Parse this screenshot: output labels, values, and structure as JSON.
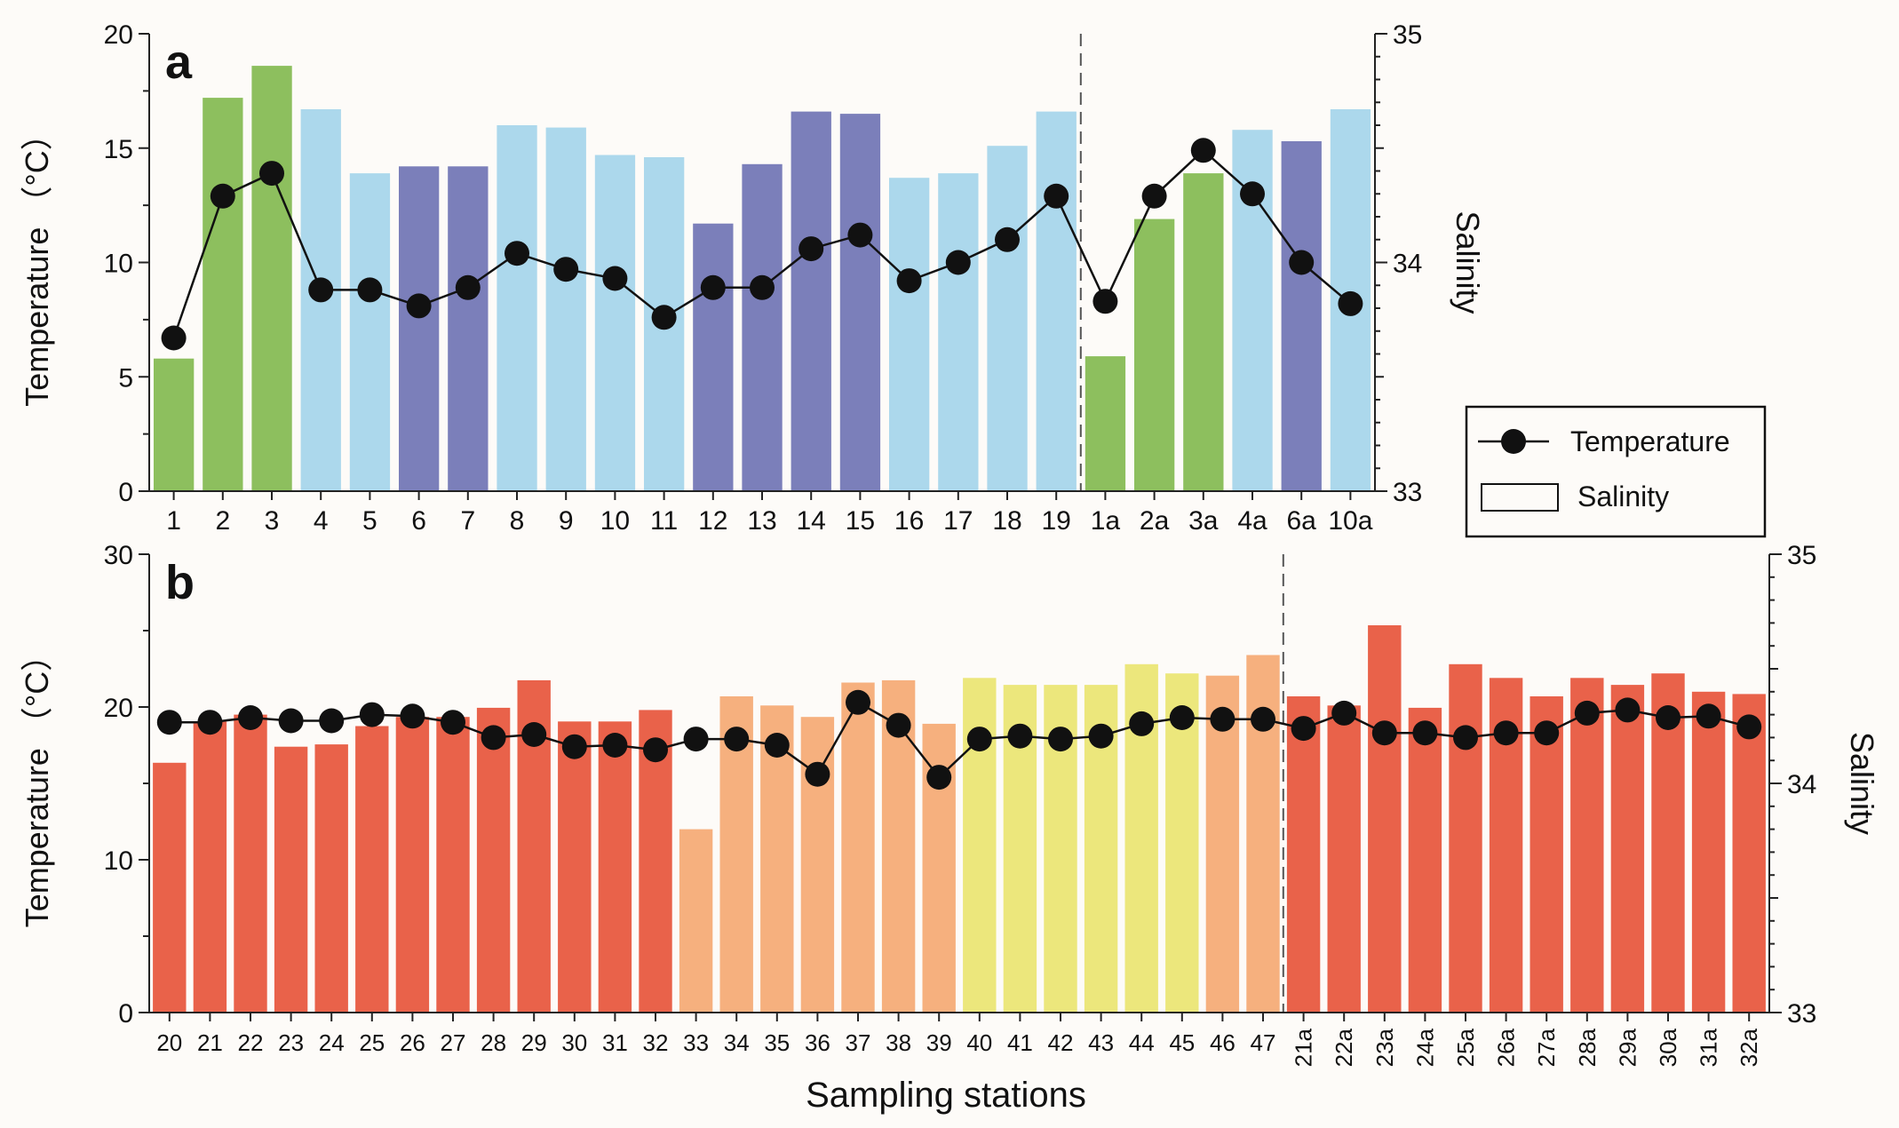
{
  "figure": {
    "xlabel": "Sampling stations",
    "legend": {
      "temperature": "Temperature",
      "salinity": "Salinity"
    }
  },
  "chart_data": [
    {
      "type": "bar",
      "panel_label": "a",
      "ylabel": "Temperature （°C）",
      "y2label": "Salinity",
      "ylim": [
        0,
        20
      ],
      "y2lim": [
        33,
        35
      ],
      "yticks": [
        0,
        5,
        10,
        15,
        20
      ],
      "y2ticks": [
        33,
        34,
        35
      ],
      "categories": [
        "1",
        "2",
        "3",
        "4",
        "5",
        "6",
        "7",
        "8",
        "9",
        "10",
        "11",
        "12",
        "13",
        "14",
        "15",
        "16",
        "17",
        "18",
        "19",
        "1a",
        "2a",
        "3a",
        "4a",
        "6a",
        "10a"
      ],
      "divider_after_index": 18,
      "series": [
        {
          "name": "Salinity",
          "axis": "right",
          "kind": "bar",
          "values": [
            33.58,
            34.72,
            34.86,
            34.67,
            34.39,
            34.42,
            34.42,
            34.6,
            34.59,
            34.47,
            34.46,
            34.17,
            34.43,
            34.66,
            34.65,
            34.37,
            34.39,
            34.51,
            34.66,
            33.59,
            34.19,
            34.39,
            34.58,
            34.53,
            34.67
          ]
        },
        {
          "name": "Temperature",
          "axis": "left",
          "kind": "line",
          "values": [
            6.7,
            12.9,
            13.9,
            8.8,
            8.8,
            8.1,
            8.9,
            10.4,
            9.7,
            9.3,
            7.6,
            8.9,
            8.9,
            10.6,
            11.2,
            9.2,
            10.0,
            11.0,
            12.9,
            8.3,
            12.9,
            14.9,
            13.0,
            10.0,
            8.2
          ]
        }
      ],
      "bar_colors": [
        "#8dbf5e",
        "#8dbf5e",
        "#8dbf5e",
        "#acd8ec",
        "#acd8ec",
        "#7b7fba",
        "#7b7fba",
        "#acd8ec",
        "#acd8ec",
        "#acd8ec",
        "#acd8ec",
        "#7b7fba",
        "#7b7fba",
        "#7b7fba",
        "#7b7fba",
        "#acd8ec",
        "#acd8ec",
        "#acd8ec",
        "#acd8ec",
        "#8dbf5e",
        "#8dbf5e",
        "#8dbf5e",
        "#acd8ec",
        "#7b7fba",
        "#acd8ec"
      ]
    },
    {
      "type": "bar",
      "panel_label": "b",
      "ylabel": "Temperature （°C）",
      "y2label": "Salinity",
      "ylim": [
        0,
        30
      ],
      "y2lim": [
        33,
        35
      ],
      "yticks": [
        0,
        10,
        20,
        30
      ],
      "y2ticks": [
        33,
        34,
        35
      ],
      "categories": [
        "20",
        "21",
        "22",
        "23",
        "24",
        "25",
        "26",
        "27",
        "28",
        "29",
        "30",
        "31",
        "32",
        "33",
        "34",
        "35",
        "36",
        "37",
        "38",
        "39",
        "40",
        "41",
        "42",
        "43",
        "44",
        "45",
        "46",
        "47",
        "21a",
        "22a",
        "23a",
        "24a",
        "25a",
        "26a",
        "27a",
        "28a",
        "29a",
        "30a",
        "31a",
        "32a"
      ],
      "divider_after_index": 27,
      "series": [
        {
          "name": "Salinity",
          "axis": "right",
          "kind": "bar",
          "values": [
            34.09,
            34.27,
            34.3,
            34.16,
            34.17,
            34.25,
            34.29,
            34.29,
            34.33,
            34.45,
            34.27,
            34.27,
            34.32,
            33.8,
            34.38,
            34.34,
            34.29,
            34.44,
            34.45,
            34.26,
            34.46,
            34.43,
            34.43,
            34.43,
            34.52,
            34.48,
            34.47,
            34.56,
            34.38,
            34.34,
            34.69,
            34.33,
            34.52,
            34.46,
            34.38,
            34.46,
            34.43,
            34.48,
            34.4,
            34.39
          ]
        },
        {
          "name": "Temperature",
          "axis": "left",
          "kind": "line",
          "values": [
            19.0,
            19.0,
            19.3,
            19.1,
            19.1,
            19.5,
            19.4,
            19.0,
            18.0,
            18.2,
            17.4,
            17.5,
            17.2,
            17.9,
            17.9,
            17.5,
            15.6,
            20.3,
            18.8,
            15.4,
            17.9,
            18.1,
            17.9,
            18.1,
            18.9,
            19.3,
            19.2,
            19.2,
            18.6,
            19.6,
            18.3,
            18.3,
            18.0,
            18.3,
            18.3,
            19.6,
            19.8,
            19.3,
            19.4,
            18.7
          ]
        }
      ],
      "bar_colors": [
        "#e9624a",
        "#e9624a",
        "#e9624a",
        "#e9624a",
        "#e9624a",
        "#e9624a",
        "#e9624a",
        "#e9624a",
        "#e9624a",
        "#e9624a",
        "#e9624a",
        "#e9624a",
        "#e9624a",
        "#f6b07e",
        "#f6b07e",
        "#f6b07e",
        "#f6b07e",
        "#f6b07e",
        "#f6b07e",
        "#f6b07e",
        "#ece77c",
        "#ece77c",
        "#ece77c",
        "#ece77c",
        "#ece77c",
        "#ece77c",
        "#f6b07e",
        "#f6b07e",
        "#e9624a",
        "#e9624a",
        "#e9624a",
        "#e9624a",
        "#e9624a",
        "#e9624a",
        "#e9624a",
        "#e9624a",
        "#e9624a",
        "#e9624a",
        "#e9624a",
        "#e9624a"
      ]
    }
  ]
}
